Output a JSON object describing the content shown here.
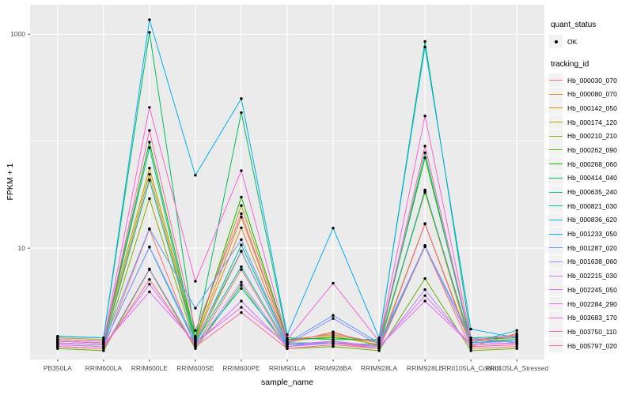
{
  "chart_data": {
    "type": "line",
    "xlabel": "sample_name",
    "ylabel": "FPKM + 1",
    "y_scale": "log10",
    "grid": true,
    "panel_color": "#EBEBEB",
    "gridline_color": "#FFFFFF",
    "point_color": "#000000",
    "y_ticks": [
      {
        "label": "1000",
        "value": 1000
      },
      {
        "label": "10",
        "value": 10
      }
    ],
    "y_minor_gridlines": [
      100,
      1
    ],
    "ylim_log": [
      1,
      1500
    ],
    "categories": [
      "PB350LA",
      "RRIM600LA",
      "RRIM600LE",
      "RRIM600SE",
      "RRIM600PE",
      "RRIM901LA",
      "RRIM928BA",
      "RRIM928LA",
      "RRIM928LE",
      "RRII105LA_Control",
      "RRII105LA_Stressed"
    ],
    "legend": {
      "position": "right",
      "quant_status_title": "quant_status",
      "quant_status_items": [
        {
          "label": "OK",
          "symbol": "point"
        }
      ],
      "tracking_id_title": "tracking_id"
    },
    "series": [
      {
        "name": "Hb_000030_070",
        "color": "#F8766D",
        "values": [
          1.2,
          1.15,
          15.0,
          1.2,
          6.3,
          1.2,
          1.3,
          1.15,
          10.3,
          1.15,
          1.2
        ]
      },
      {
        "name": "Hb_000080_070",
        "color": "#E88526",
        "values": [
          1.3,
          1.25,
          43.0,
          1.35,
          15.5,
          1.3,
          1.65,
          1.2,
          34.0,
          1.2,
          1.6
        ]
      },
      {
        "name": "Hb_000142_050",
        "color": "#D39200",
        "values": [
          1.35,
          1.3,
          49.0,
          1.4,
          19.5,
          1.35,
          1.5,
          1.25,
          34.5,
          1.3,
          1.35
        ]
      },
      {
        "name": "Hb_000174_120",
        "color": "#B79F00",
        "values": [
          1.45,
          1.4,
          56.0,
          1.5,
          25.0,
          1.4,
          1.55,
          1.3,
          33.0,
          1.35,
          1.4
        ]
      },
      {
        "name": "Hb_000210_210",
        "color": "#93AA00",
        "values": [
          1.25,
          1.2,
          29.0,
          1.25,
          9.3,
          1.25,
          1.35,
          1.2,
          17.0,
          1.25,
          1.3
        ]
      },
      {
        "name": "Hb_000262_090",
        "color": "#64B200",
        "values": [
          1.15,
          1.1,
          6.3,
          1.15,
          4.5,
          1.15,
          1.2,
          1.1,
          5.2,
          1.1,
          1.15
        ]
      },
      {
        "name": "Hb_000268_060",
        "color": "#13B800",
        "values": [
          1.4,
          1.35,
          98.0,
          1.45,
          30.0,
          1.4,
          1.45,
          1.35,
          70.0,
          1.4,
          1.45
        ]
      },
      {
        "name": "Hb_000414_040",
        "color": "#00BD5F",
        "values": [
          1.5,
          1.45,
          1040,
          1.45,
          185,
          1.45,
          1.4,
          1.4,
          855,
          1.45,
          1.5
        ]
      },
      {
        "name": "Hb_000635_240",
        "color": "#00C08B",
        "values": [
          1.35,
          1.3,
          87.0,
          1.3,
          10.7,
          1.3,
          1.3,
          1.25,
          78.0,
          1.3,
          1.35
        ]
      },
      {
        "name": "Hb_000821_030",
        "color": "#00C0B4",
        "values": [
          1.3,
          1.25,
          43.5,
          1.3,
          6.7,
          1.25,
          1.3,
          1.2,
          35.0,
          1.3,
          1.7
        ]
      },
      {
        "name": "Hb_000836_620",
        "color": "#00BDD2",
        "values": [
          1.3,
          1.25,
          10.2,
          1.25,
          4.2,
          1.25,
          1.3,
          1.2,
          10.5,
          1.3,
          1.4
        ]
      },
      {
        "name": "Hb_001233_050",
        "color": "#00B0F6",
        "values": [
          1.5,
          1.45,
          1365,
          48.0,
          250,
          1.55,
          15.4,
          1.45,
          760,
          1.75,
          1.45
        ]
      },
      {
        "name": "Hb_001287_020",
        "color": "#619CFF",
        "values": [
          1.35,
          1.3,
          15.2,
          2.75,
          12.0,
          1.3,
          2.35,
          1.3,
          10.4,
          1.45,
          1.3
        ]
      },
      {
        "name": "Hb_001638_060",
        "color": "#9590FF",
        "values": [
          1.3,
          1.25,
          10.3,
          1.35,
          9.4,
          1.25,
          2.2,
          1.25,
          10.6,
          1.3,
          1.35
        ]
      },
      {
        "name": "Hb_002215_030",
        "color": "#B983FF",
        "values": [
          1.2,
          1.15,
          6.4,
          1.2,
          4.8,
          1.2,
          1.35,
          1.15,
          4.1,
          1.2,
          1.25
        ]
      },
      {
        "name": "Hb_002245_050",
        "color": "#D575FE",
        "values": [
          1.25,
          1.2,
          4.6,
          1.25,
          3.2,
          1.2,
          1.3,
          1.2,
          3.6,
          1.25,
          1.3
        ]
      },
      {
        "name": "Hb_002284_290",
        "color": "#E76BF3",
        "values": [
          1.3,
          1.25,
          3.9,
          1.3,
          2.8,
          1.25,
          1.35,
          1.2,
          3.2,
          1.25,
          1.3
        ]
      },
      {
        "name": "Hb_003683_170",
        "color": "#FA62DB",
        "values": [
          1.4,
          1.35,
          207,
          4.9,
          53.0,
          1.4,
          4.7,
          1.35,
          172,
          1.4,
          1.5
        ]
      },
      {
        "name": "Hb_003750_110",
        "color": "#FF61BA",
        "values": [
          1.35,
          1.3,
          126,
          1.7,
          21.0,
          1.35,
          1.6,
          1.3,
          90.0,
          1.35,
          1.55
        ]
      },
      {
        "name": "Hb_005797_020",
        "color": "#FF6A96",
        "values": [
          1.2,
          1.15,
          5.1,
          1.2,
          2.5,
          1.15,
          1.25,
          1.15,
          16.8,
          1.2,
          1.25
        ]
      }
    ]
  }
}
